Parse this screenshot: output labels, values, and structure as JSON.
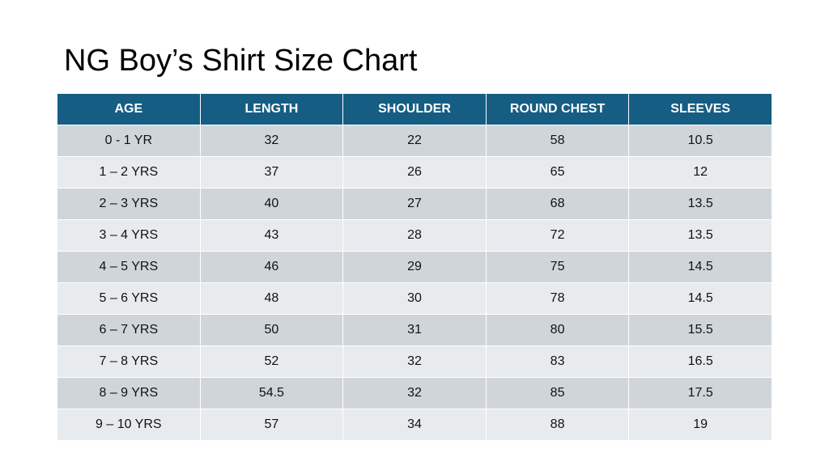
{
  "page": {
    "title": "NG Boy’s Shirt Size Chart"
  },
  "table": {
    "headers": [
      "AGE",
      "LENGTH",
      "SHOULDER",
      "ROUND CHEST",
      "SLEEVES"
    ],
    "rows": [
      [
        "0 - 1 YR",
        "32",
        "22",
        "58",
        "10.5"
      ],
      [
        "1 – 2 YRS",
        "37",
        "26",
        "65",
        "12"
      ],
      [
        "2 – 3 YRS",
        "40",
        "27",
        "68",
        "13.5"
      ],
      [
        "3 – 4 YRS",
        "43",
        "28",
        "72",
        "13.5"
      ],
      [
        "4 – 5 YRS",
        "46",
        "29",
        "75",
        "14.5"
      ],
      [
        "5 – 6 YRS",
        "48",
        "30",
        "78",
        "14.5"
      ],
      [
        "6 – 7 YRS",
        "50",
        "31",
        "80",
        "15.5"
      ],
      [
        "7 – 8 YRS",
        "52",
        "32",
        "83",
        "16.5"
      ],
      [
        "8 – 9 YRS",
        "54.5",
        "32",
        "85",
        "17.5"
      ],
      [
        "9 – 10 YRS",
        "57",
        "34",
        "88",
        "19"
      ]
    ]
  },
  "colors": {
    "header_background": "#155d83",
    "header_text": "#ffffff",
    "row_odd": "#d0d5da",
    "row_even": "#e8ebee"
  }
}
